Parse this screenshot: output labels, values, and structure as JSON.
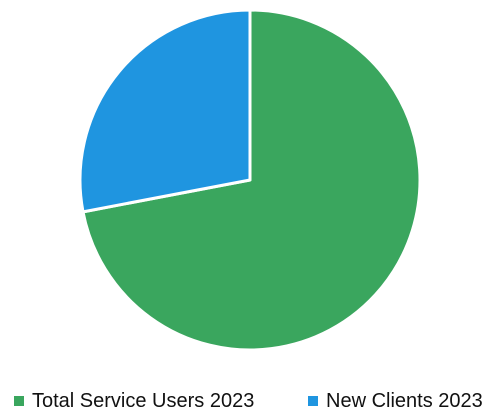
{
  "chart_data": {
    "type": "pie",
    "series": [
      {
        "name": "Total Service Users 2023",
        "value": 72,
        "color": "#3aa65e"
      },
      {
        "name": "New Clients 2023",
        "value": 28,
        "color": "#1f95e0"
      }
    ],
    "legend_position": "bottom",
    "start_angle_deg": 0,
    "direction": "clockwise"
  }
}
